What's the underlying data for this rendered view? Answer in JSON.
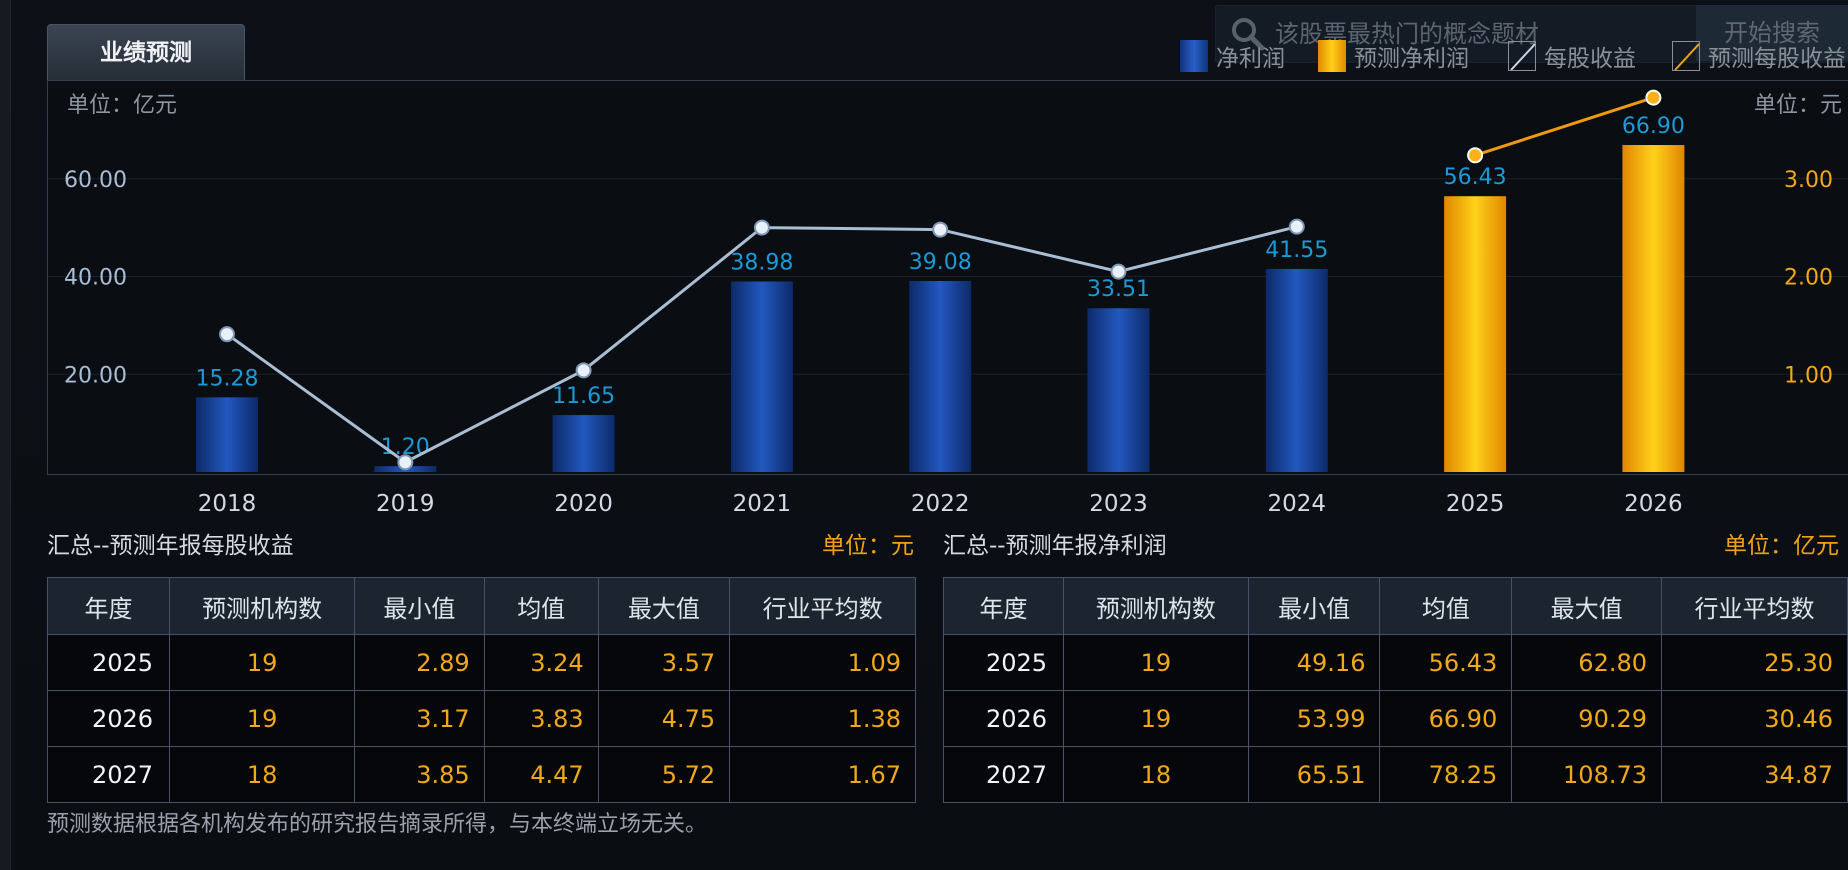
{
  "tab_label": "业绩预测",
  "search": {
    "placeholder": "该股票最热门的概念题材",
    "button": "开始搜索"
  },
  "legend": [
    {
      "label": "净利润",
      "kind": "bar",
      "color": "#1e4fb0"
    },
    {
      "label": "预测净利润",
      "kind": "bar",
      "color": "#f5a60c"
    },
    {
      "label": "每股收益",
      "kind": "line",
      "color": "#b8c8dc"
    },
    {
      "label": "预测每股收益",
      "kind": "line",
      "color": "#f0a313"
    }
  ],
  "colors": {
    "bar_actual": "#1a4ea8",
    "bar_forecast": "#f6b40a",
    "line_actual": "#a9bdd4",
    "line_forecast": "#f09a10",
    "label_actual": "#1a9ad6",
    "axis_left": "#a9bed6",
    "axis_right": "#f2a817"
  },
  "chart_data": {
    "type": "bar",
    "left_unit": "单位：亿元",
    "right_unit": "单位：元",
    "categories": [
      "2018",
      "2019",
      "2020",
      "2021",
      "2022",
      "2023",
      "2024",
      "2025",
      "2026"
    ],
    "y_left_ticks": [
      "20.00",
      "40.00",
      "60.00"
    ],
    "y_right_ticks": [
      "1.00",
      "2.00",
      "3.00"
    ],
    "ylim_left": [
      0,
      80
    ],
    "ylim_right": [
      0,
      4
    ],
    "series": [
      {
        "name": "净利润",
        "kind": "bar",
        "values": [
          15.28,
          1.2,
          11.65,
          38.98,
          39.08,
          33.51,
          41.55,
          null,
          null
        ],
        "labels": [
          "15.28",
          "1.20",
          "11.65",
          "38.98",
          "39.08",
          "33.51",
          "41.55",
          null,
          null
        ]
      },
      {
        "name": "预测净利润",
        "kind": "bar",
        "values": [
          null,
          null,
          null,
          null,
          null,
          null,
          null,
          56.43,
          66.9
        ],
        "labels": [
          null,
          null,
          null,
          null,
          null,
          null,
          null,
          "56.43",
          "66.90"
        ]
      },
      {
        "name": "每股收益",
        "kind": "line",
        "axis": "right",
        "values": [
          1.41,
          0.1,
          1.04,
          2.5,
          2.48,
          2.05,
          2.51,
          null,
          null
        ]
      },
      {
        "name": "预测每股收益",
        "kind": "line",
        "axis": "right",
        "values": [
          null,
          null,
          null,
          null,
          null,
          null,
          null,
          3.24,
          3.83
        ]
      }
    ]
  },
  "eps_section": {
    "title": "汇总--预测年报每股收益",
    "unit": "单位：元"
  },
  "profit_section": {
    "title": "汇总--预测年报净利润",
    "unit": "单位：亿元"
  },
  "headers": [
    "年度",
    "预测机构数",
    "最小值",
    "均值",
    "最大值",
    "行业平均数"
  ],
  "eps_rows": [
    [
      "2025",
      "19",
      "2.89",
      "3.24",
      "3.57",
      "1.09"
    ],
    [
      "2026",
      "19",
      "3.17",
      "3.83",
      "4.75",
      "1.38"
    ],
    [
      "2027",
      "18",
      "3.85",
      "4.47",
      "5.72",
      "1.67"
    ]
  ],
  "profit_rows": [
    [
      "2025",
      "19",
      "49.16",
      "56.43",
      "62.80",
      "25.30"
    ],
    [
      "2026",
      "19",
      "53.99",
      "66.90",
      "90.29",
      "30.46"
    ],
    [
      "2027",
      "18",
      "65.51",
      "78.25",
      "108.73",
      "34.87"
    ]
  ],
  "footnote": "预测数据根据各机构发布的研究报告摘录所得，与本终端立场无关。"
}
